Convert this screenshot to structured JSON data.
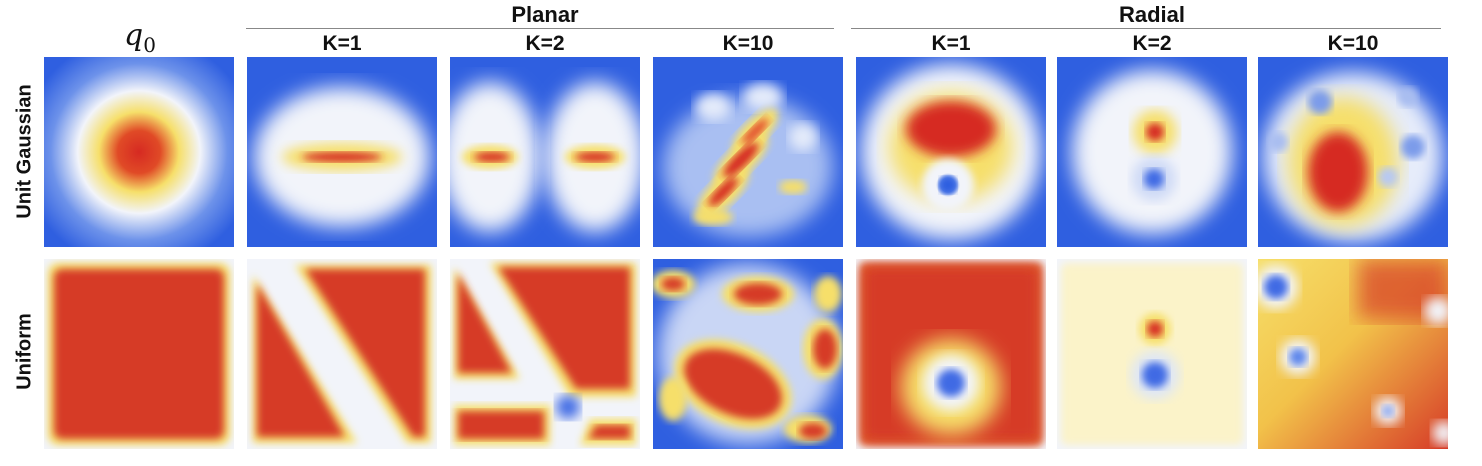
{
  "figure": {
    "groups": [
      {
        "title": "Planar",
        "columns": [
          "K=1",
          "K=2",
          "K=10"
        ]
      },
      {
        "title": "Radial",
        "columns": [
          "K=1",
          "K=2",
          "K=10"
        ]
      }
    ],
    "base_column": {
      "symbol": "q",
      "subscript": "0"
    },
    "rows": [
      "Unit Gaussian",
      "Uniform"
    ]
  },
  "colors": {
    "low": "#2f5fe0",
    "mid": "#f2f4fa",
    "mid_high": "#f6df6a",
    "high": "#d62a22"
  }
}
